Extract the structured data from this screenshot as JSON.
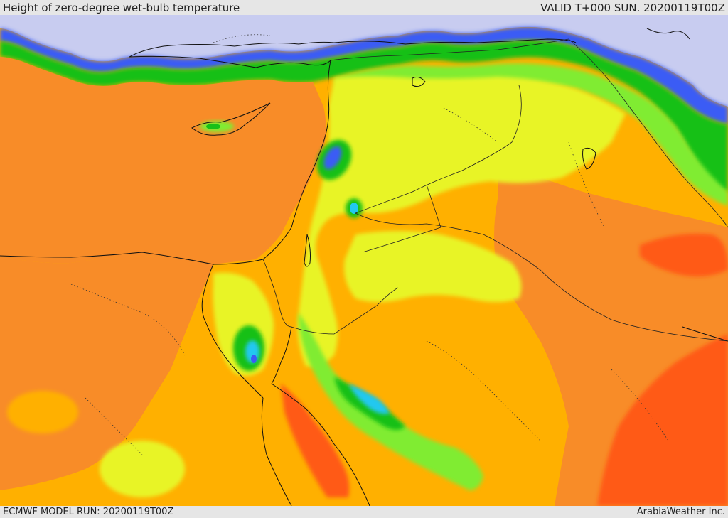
{
  "header": {
    "title": "Height of zero-degree wet-bulb temperature",
    "valid": "VALID T+000 SUN. 20200119T00Z"
  },
  "footer": {
    "model_run": "ECMWF MODEL RUN: 20200119T00Z",
    "credit": "ArabiaWeather Inc."
  },
  "map": {
    "region": "Eastern Mediterranean / Middle East",
    "palette": {
      "sea_cold": "#c8ccf0",
      "blue": "#3a5cf5",
      "cyan": "#22c8f0",
      "green_dark": "#18c018",
      "green_light": "#80ec30",
      "yellow": "#e8f428",
      "orange_yellow": "#ffb000",
      "orange": "#f88c28",
      "red_orange": "#ff5a14",
      "red": "#f03a10"
    }
  }
}
